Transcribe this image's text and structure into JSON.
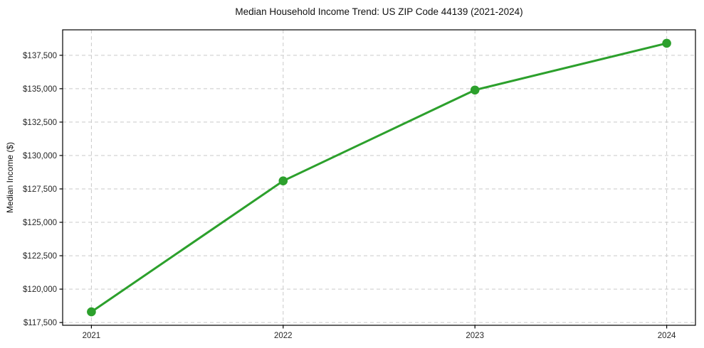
{
  "chart_data": {
    "type": "line",
    "title": "Median Household Income Trend: US ZIP Code 44139 (2021-2024)",
    "xlabel": "",
    "ylabel": "Median Income ($)",
    "x": [
      2021,
      2022,
      2023,
      2024
    ],
    "x_tick_labels": [
      "2021",
      "2022",
      "2023",
      "2024"
    ],
    "series": [
      {
        "name": "Median Household Income",
        "values": [
          118300,
          128100,
          134900,
          138400
        ]
      }
    ],
    "y_ticks": [
      117500,
      120000,
      122500,
      125000,
      127500,
      130000,
      132500,
      135000,
      137500
    ],
    "y_tick_labels": [
      "$117,500",
      "$120,000",
      "$122,500",
      "$125,000",
      "$127,500",
      "$130,000",
      "$132,500",
      "$135,000",
      "$137,500"
    ],
    "xlim": [
      2020.85,
      2024.15
    ],
    "ylim": [
      117295,
      139405
    ],
    "grid": true,
    "legend": "none",
    "line_color": "#2ca02c",
    "marker": "circle",
    "grid_color": "#c9c9c9",
    "axis_color": "#000000",
    "text_color": "#262626"
  }
}
